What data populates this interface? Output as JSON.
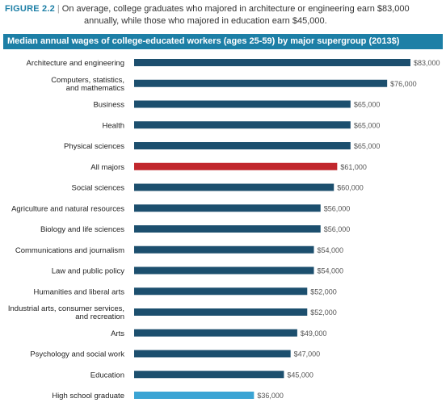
{
  "header": {
    "figure_label": "FIGURE 2.2",
    "separator": "|",
    "subtitle_line1": "On average, college graduates who majored in architecture or engineering earn $83,000",
    "subtitle_line2": "annually, while those who majored in education earn $45,000."
  },
  "chart_data": {
    "type": "bar",
    "orientation": "horizontal",
    "title": "Median annual wages of college-educated workers (ages 25-59) by major supergroup (2013$)",
    "xlabel": "",
    "ylabel": "",
    "xlim": [
      0,
      83000
    ],
    "grid": false,
    "legend": "none",
    "categories": [
      [
        "Architecture and engineering"
      ],
      [
        "Computers, statistics,",
        "and mathematics"
      ],
      [
        "Business"
      ],
      [
        "Health"
      ],
      [
        "Physical sciences"
      ],
      [
        "All majors"
      ],
      [
        "Social sciences"
      ],
      [
        "Agriculture and natural resources"
      ],
      [
        "Biology and life sciences"
      ],
      [
        "Communications and journalism"
      ],
      [
        "Law and public policy"
      ],
      [
        "Humanities and liberal arts"
      ],
      [
        "Industrial arts, consumer services,",
        "and recreation"
      ],
      [
        "Arts"
      ],
      [
        "Psychology and social work"
      ],
      [
        "Education"
      ],
      [
        "High school graduate"
      ]
    ],
    "values": [
      83000,
      76000,
      65000,
      65000,
      65000,
      61000,
      60000,
      56000,
      56000,
      54000,
      54000,
      52000,
      52000,
      49000,
      47000,
      45000,
      36000
    ],
    "value_labels": [
      "$83,000",
      "$76,000",
      "$65,000",
      "$65,000",
      "$65,000",
      "$61,000",
      "$60,000",
      "$56,000",
      "$56,000",
      "$54,000",
      "$54,000",
      "$52,000",
      "$52,000",
      "$49,000",
      "$47,000",
      "$45,000",
      "$36,000"
    ],
    "colors": {
      "default": "#1c4f6e",
      "highlight": "#c1272d",
      "baseline": "#3ba4d4"
    },
    "highlight_index": 5,
    "baseline_index": 16
  }
}
